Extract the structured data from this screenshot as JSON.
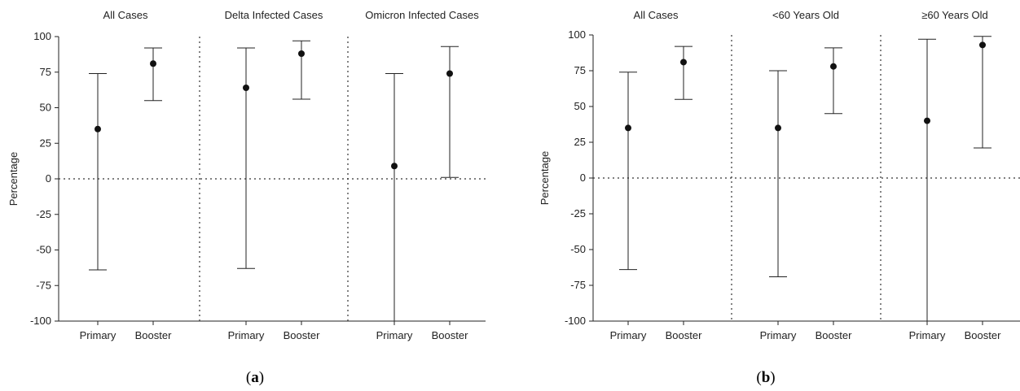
{
  "chart_data": [
    {
      "type": "scatter",
      "panel_label_open": "(",
      "panel_label_letter": "a",
      "panel_label_close": ")",
      "ylabel": "Percentage",
      "ylim": [
        -100,
        100
      ],
      "yticks": [
        100,
        75,
        50,
        25,
        0,
        -25,
        -50,
        -75,
        -100
      ],
      "groups": [
        {
          "title": "All Cases",
          "points": [
            {
              "category": "Primary",
              "value": 35,
              "lower": -64,
              "upper": 74
            },
            {
              "category": "Booster",
              "value": 81,
              "lower": 55,
              "upper": 92
            }
          ]
        },
        {
          "title": "Delta Infected Cases",
          "points": [
            {
              "category": "Primary",
              "value": 64,
              "lower": -63,
              "upper": 92
            },
            {
              "category": "Booster",
              "value": 88,
              "lower": 56,
              "upper": 97
            }
          ]
        },
        {
          "title": "Omicron Infected Cases",
          "points": [
            {
              "category": "Primary",
              "value": 9,
              "lower": -100,
              "upper": 74
            },
            {
              "category": "Booster",
              "value": 74,
              "lower": 1,
              "upper": 93
            }
          ]
        }
      ],
      "reference_line": 0
    },
    {
      "type": "scatter",
      "panel_label_open": "(",
      "panel_label_letter": "b",
      "panel_label_close": ")",
      "ylabel": "Percentage",
      "ylim": [
        -100,
        100
      ],
      "yticks": [
        100,
        75,
        50,
        25,
        0,
        -25,
        -50,
        -75,
        -100
      ],
      "groups": [
        {
          "title": "All Cases",
          "points": [
            {
              "category": "Primary",
              "value": 35,
              "lower": -64,
              "upper": 74
            },
            {
              "category": "Booster",
              "value": 81,
              "lower": 55,
              "upper": 92
            }
          ]
        },
        {
          "title": "<60 Years Old",
          "points": [
            {
              "category": "Primary",
              "value": 35,
              "lower": -69,
              "upper": 75
            },
            {
              "category": "Booster",
              "value": 78,
              "lower": 45,
              "upper": 91
            }
          ]
        },
        {
          "title": "≥60 Years Old",
          "points": [
            {
              "category": "Primary",
              "value": 40,
              "lower": -100,
              "upper": 97
            },
            {
              "category": "Booster",
              "value": 93,
              "lower": 21,
              "upper": 99
            }
          ]
        }
      ],
      "reference_line": 0
    }
  ]
}
